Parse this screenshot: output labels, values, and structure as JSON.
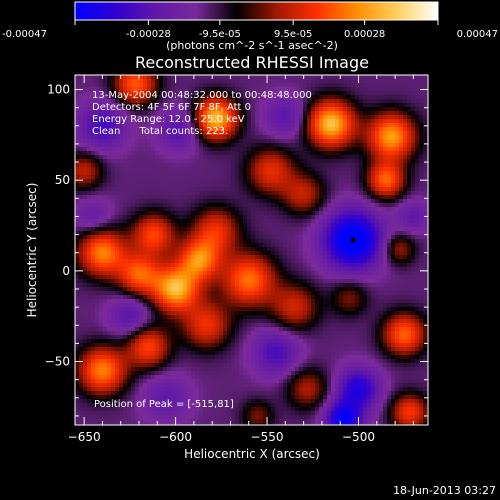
{
  "chart_data": {
    "type": "heatmap",
    "title": "Reconstructed RHESSI Image",
    "xlabel": "Heliocentric X (arcsec)",
    "ylabel": "Heliocentric Y (arcsec)",
    "xlim": [
      -655,
      -462
    ],
    "ylim": [
      -85,
      108
    ],
    "x_ticks": [
      -650,
      -600,
      -550,
      -500
    ],
    "y_ticks": [
      -50,
      0,
      50,
      100
    ],
    "colorbar": {
      "min": -0.00047,
      "max": 0.00047,
      "tick_values": [
        -0.00047,
        -0.00028,
        -9.5e-05,
        9.5e-05,
        0.00028,
        0.00047
      ],
      "tick_labels": [
        "-0.00047",
        "-0.00028",
        "-9.5e-05",
        "9.5e-05",
        "0.00028",
        "0.00047"
      ],
      "units": "(photons cm^-2 s^-1 asec^-2)",
      "colors": [
        "#0000ff",
        "#3000d0",
        "#6018a8",
        "#7a2a9a",
        "#000000",
        "#a01800",
        "#ff3000",
        "#ff9000",
        "#ffd060",
        "#ffffff"
      ]
    },
    "annotations": [
      "13-May-2004 00:48:32.000 to 00:48:48.000",
      "Detectors: 4F 5F 6F 7F 8F, Att 0",
      "Energy Range: 12.0 - 25.0 keV",
      "Clean      Total counts: 223."
    ],
    "peak_label": "Position of Peak = [-515,81]",
    "peak": {
      "x": -515,
      "y": 81
    },
    "marker": {
      "x": -503,
      "y": 17
    },
    "blobs": [
      {
        "x": -622,
        "y": 103,
        "v": 0.00033,
        "s": 8
      },
      {
        "x": -578,
        "y": 84,
        "v": 0.00047,
        "s": 8
      },
      {
        "x": -515,
        "y": 81,
        "v": 0.00047,
        "s": 9
      },
      {
        "x": -482,
        "y": 74,
        "v": 0.00042,
        "s": 9
      },
      {
        "x": -485,
        "y": 50,
        "v": 0.00034,
        "s": 7
      },
      {
        "x": -650,
        "y": 55,
        "v": 0.0002,
        "s": 7
      },
      {
        "x": -548,
        "y": 55,
        "v": 0.00025,
        "s": 9
      },
      {
        "x": -530,
        "y": 42,
        "v": 0.0002,
        "s": 8
      },
      {
        "x": -612,
        "y": 20,
        "v": 0.0003,
        "s": 8
      },
      {
        "x": -578,
        "y": 22,
        "v": 0.00026,
        "s": 9
      },
      {
        "x": -640,
        "y": 10,
        "v": 0.00038,
        "s": 9
      },
      {
        "x": -620,
        "y": -2,
        "v": 0.00032,
        "s": 8
      },
      {
        "x": -600,
        "y": -10,
        "v": 0.00045,
        "s": 9
      },
      {
        "x": -587,
        "y": 6,
        "v": 0.00036,
        "s": 8
      },
      {
        "x": -560,
        "y": -5,
        "v": 0.00036,
        "s": 10
      },
      {
        "x": -640,
        "y": -55,
        "v": 0.00038,
        "s": 9
      },
      {
        "x": -615,
        "y": -42,
        "v": 0.0003,
        "s": 8
      },
      {
        "x": -583,
        "y": -30,
        "v": 0.00026,
        "s": 9
      },
      {
        "x": -535,
        "y": -20,
        "v": 0.00022,
        "s": 9
      },
      {
        "x": -505,
        "y": -15,
        "v": 0.00014,
        "s": 7
      },
      {
        "x": -475,
        "y": -35,
        "v": 0.00034,
        "s": 8
      },
      {
        "x": -478,
        "y": 12,
        "v": 0.00018,
        "s": 6
      },
      {
        "x": -528,
        "y": -65,
        "v": 0.00018,
        "s": 8
      },
      {
        "x": -472,
        "y": -78,
        "v": 0.00028,
        "s": 7
      },
      {
        "x": -555,
        "y": -80,
        "v": 0.00014,
        "s": 6
      },
      {
        "x": -503,
        "y": 17,
        "v": -0.00047,
        "s": 11
      },
      {
        "x": -500,
        "y": -65,
        "v": -0.0003,
        "s": 8
      },
      {
        "x": -508,
        "y": -82,
        "v": -0.00038,
        "s": 7
      },
      {
        "x": -640,
        "y": 80,
        "v": -0.00022,
        "s": 9
      },
      {
        "x": -598,
        "y": 78,
        "v": -0.00018,
        "s": 8
      },
      {
        "x": -540,
        "y": 85,
        "v": -0.00016,
        "s": 8
      },
      {
        "x": -625,
        "y": -25,
        "v": -0.00016,
        "s": 8
      },
      {
        "x": -545,
        "y": -45,
        "v": -0.0002,
        "s": 9
      },
      {
        "x": -605,
        "y": -70,
        "v": -0.00014,
        "s": 9
      },
      {
        "x": -645,
        "y": 30,
        "v": -0.00012,
        "s": 7
      },
      {
        "x": -470,
        "y": 30,
        "v": -0.00014,
        "s": 6
      }
    ]
  },
  "footer": {
    "timestamp": "18-Jun-2013 03:27"
  }
}
